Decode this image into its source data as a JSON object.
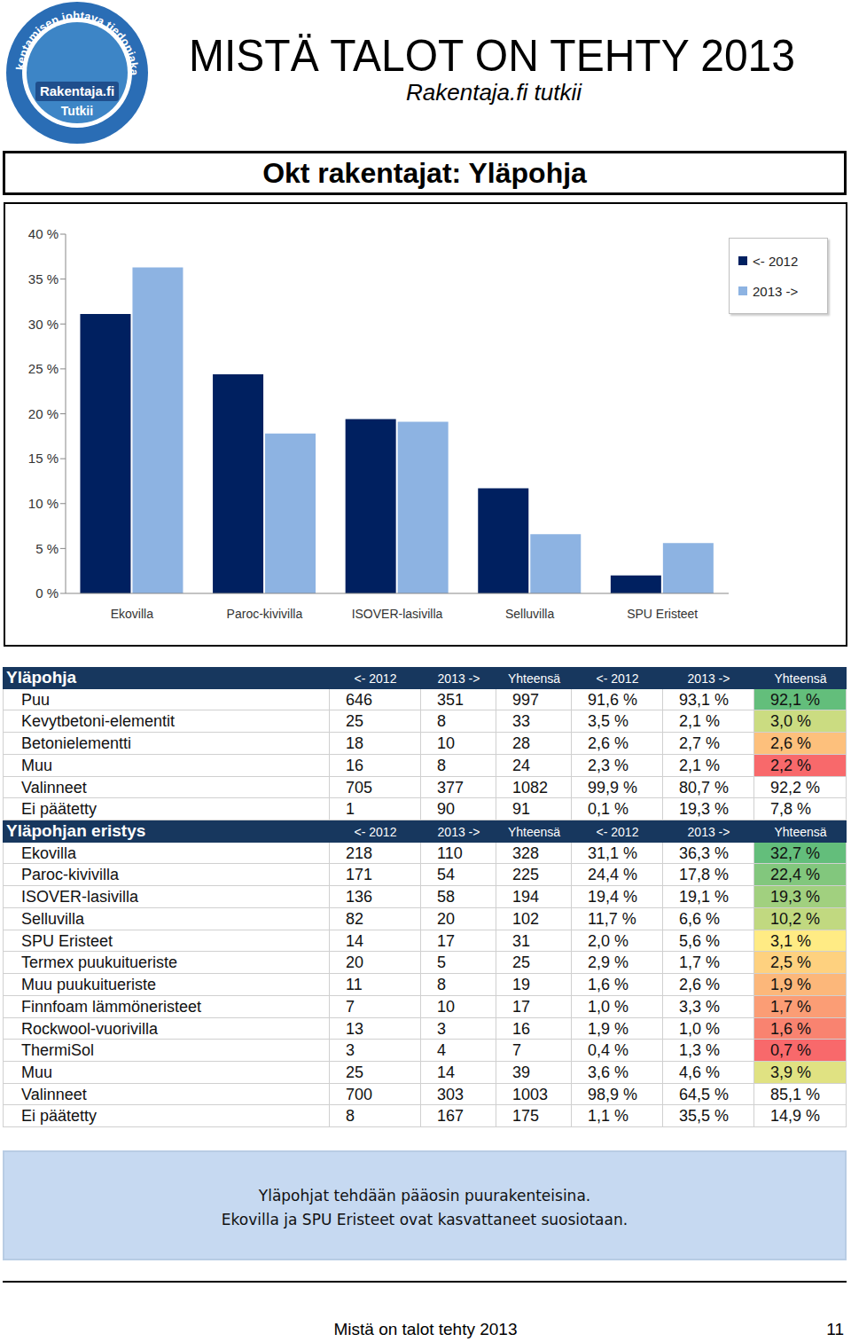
{
  "header": {
    "title": "MISTÄ TALOT ON TEHTY 2013",
    "subtitle": "Rakentaja.fi tutkii",
    "logo": {
      "ring": "Rakentamisen johtava tiedonjakaja",
      "name": "Rakentaja.fi",
      "badge": "Tutkii"
    }
  },
  "chart_title": "Okt rakentajat: Yläpohja",
  "chart_data": {
    "type": "bar",
    "categories": [
      "Ekovilla",
      "Paroc-kivivilla",
      "ISOVER-lasivilla",
      "Selluvilla",
      "SPU Eristeet"
    ],
    "series": [
      {
        "name": "<- 2012",
        "color": "#002060",
        "values": [
          31.1,
          24.4,
          19.4,
          11.7,
          2.0
        ]
      },
      {
        "name": "2013 ->",
        "color": "#8db3e2",
        "values": [
          36.3,
          17.8,
          19.1,
          6.6,
          5.6
        ]
      }
    ],
    "ylim": [
      0,
      40
    ],
    "yticks": [
      {
        "value": 0,
        "label": "0 %"
      },
      {
        "value": 5,
        "label": "5 %"
      },
      {
        "value": 10,
        "label": "10 %"
      },
      {
        "value": 15,
        "label": "15 %"
      },
      {
        "value": 20,
        "label": "20 %"
      },
      {
        "value": 25,
        "label": "25 %"
      },
      {
        "value": 30,
        "label": "30 %"
      },
      {
        "value": 35,
        "label": "35 %"
      },
      {
        "value": 40,
        "label": "40 %"
      }
    ],
    "grid": false,
    "legend": "top-right"
  },
  "tables": [
    {
      "title": "Yläpohja",
      "columns": [
        "<- 2012",
        "2013 ->",
        "Yhteensä",
        "<- 2012",
        "2013 ->",
        "Yhteensä"
      ],
      "rows": [
        [
          "Puu",
          646,
          351,
          997,
          "91,6 %",
          "93,1 %",
          "92,1 %"
        ],
        [
          "Kevytbetoni-elementit",
          25,
          8,
          33,
          "3,5 %",
          "2,1 %",
          "3,0 %"
        ],
        [
          "Betonielementti",
          18,
          10,
          28,
          "2,6 %",
          "2,7 %",
          "2,6 %"
        ],
        [
          "Muu",
          16,
          8,
          24,
          "2,3 %",
          "2,1 %",
          "2,2 %"
        ],
        [
          "Valinneet",
          705,
          377,
          1082,
          "99,9 %",
          "80,7 %",
          "92,2 %"
        ],
        [
          "Ei päätetty",
          1,
          90,
          91,
          "0,1 %",
          "19,3 %",
          "7,8 %"
        ]
      ]
    },
    {
      "title": "Yläpohjan eristys",
      "columns": [
        "<- 2012",
        "2013 ->",
        "Yhteensä",
        "<- 2012",
        "2013 ->",
        "Yhteensä"
      ],
      "rows": [
        [
          "Ekovilla",
          218,
          110,
          328,
          "31,1 %",
          "36,3 %",
          "32,7 %"
        ],
        [
          "Paroc-kivivilla",
          171,
          54,
          225,
          "24,4 %",
          "17,8 %",
          "22,4 %"
        ],
        [
          "ISOVER-lasivilla",
          136,
          58,
          194,
          "19,4 %",
          "19,1 %",
          "19,3 %"
        ],
        [
          "Selluvilla",
          82,
          20,
          102,
          "11,7 %",
          "6,6 %",
          "10,2 %"
        ],
        [
          "SPU Eristeet",
          14,
          17,
          31,
          "2,0 %",
          "5,6 %",
          "3,1 %"
        ],
        [
          "Termex puukuitueriste",
          20,
          5,
          25,
          "2,9 %",
          "1,7 %",
          "2,5 %"
        ],
        [
          "Muu puukuitueriste",
          11,
          8,
          19,
          "1,6 %",
          "2,6 %",
          "1,9 %"
        ],
        [
          "Finnfoam lämmöneristeet",
          7,
          10,
          17,
          "1,0 %",
          "3,3 %",
          "1,7 %"
        ],
        [
          "Rockwool-vuorivilla",
          13,
          3,
          16,
          "1,9 %",
          "1,0 %",
          "1,6 %"
        ],
        [
          "ThermiSol",
          3,
          4,
          7,
          "0,4 %",
          "1,3 %",
          "0,7 %"
        ],
        [
          "Muu",
          25,
          14,
          39,
          "3,6 %",
          "4,6 %",
          "3,9 %"
        ],
        [
          "Valinneet",
          700,
          303,
          1003,
          "98,9 %",
          "64,5 %",
          "85,1 %"
        ],
        [
          "Ei päätetty",
          8,
          167,
          175,
          "1,1 %",
          "35,5 %",
          "14,9 %"
        ]
      ]
    }
  ],
  "note": [
    "Yläpohjat tehdään pääosin puurakenteisina.",
    "Ekovilla ja SPU Eristeet ovat kasvattaneet suosiotaan."
  ],
  "footer": {
    "text": "Mistä on talot tehty 2013",
    "page": 11
  }
}
